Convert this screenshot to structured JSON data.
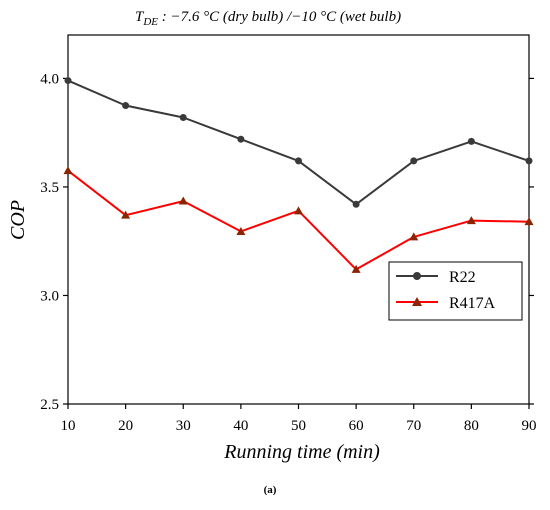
{
  "chart_data": {
    "type": "line",
    "title": {
      "main": "T",
      "subscript": "DE",
      "rest": " : −7.6 °C (dry bulb) /−10 °C (wet bulb)"
    },
    "xlabel": "Running time (min)",
    "ylabel": "COP",
    "x": [
      10,
      20,
      30,
      40,
      50,
      60,
      70,
      80,
      90
    ],
    "xlim": [
      10,
      90
    ],
    "ylim": [
      2.5,
      4.2
    ],
    "x_ticks": [
      "10",
      "20",
      "30",
      "40",
      "50",
      "60",
      "70",
      "80",
      "90"
    ],
    "y_ticks": [
      "2.5",
      "3.0",
      "3.5",
      "4.0"
    ],
    "y_tick_values": [
      2.5,
      3.0,
      3.5,
      4.0
    ],
    "grid": false,
    "legend_position": "right",
    "series": [
      {
        "name": "R22",
        "color": "#3a3a3a",
        "marker": "circle",
        "values": [
          3.99,
          3.875,
          3.82,
          3.72,
          3.62,
          3.42,
          3.62,
          3.71,
          3.62
        ]
      },
      {
        "name": "R417A",
        "color": "#ff0000",
        "marker_color": "#8b2500",
        "marker": "triangle",
        "values": [
          3.575,
          3.37,
          3.435,
          3.295,
          3.39,
          3.12,
          3.27,
          3.345,
          3.34
        ]
      }
    ],
    "caption": "(a)"
  }
}
